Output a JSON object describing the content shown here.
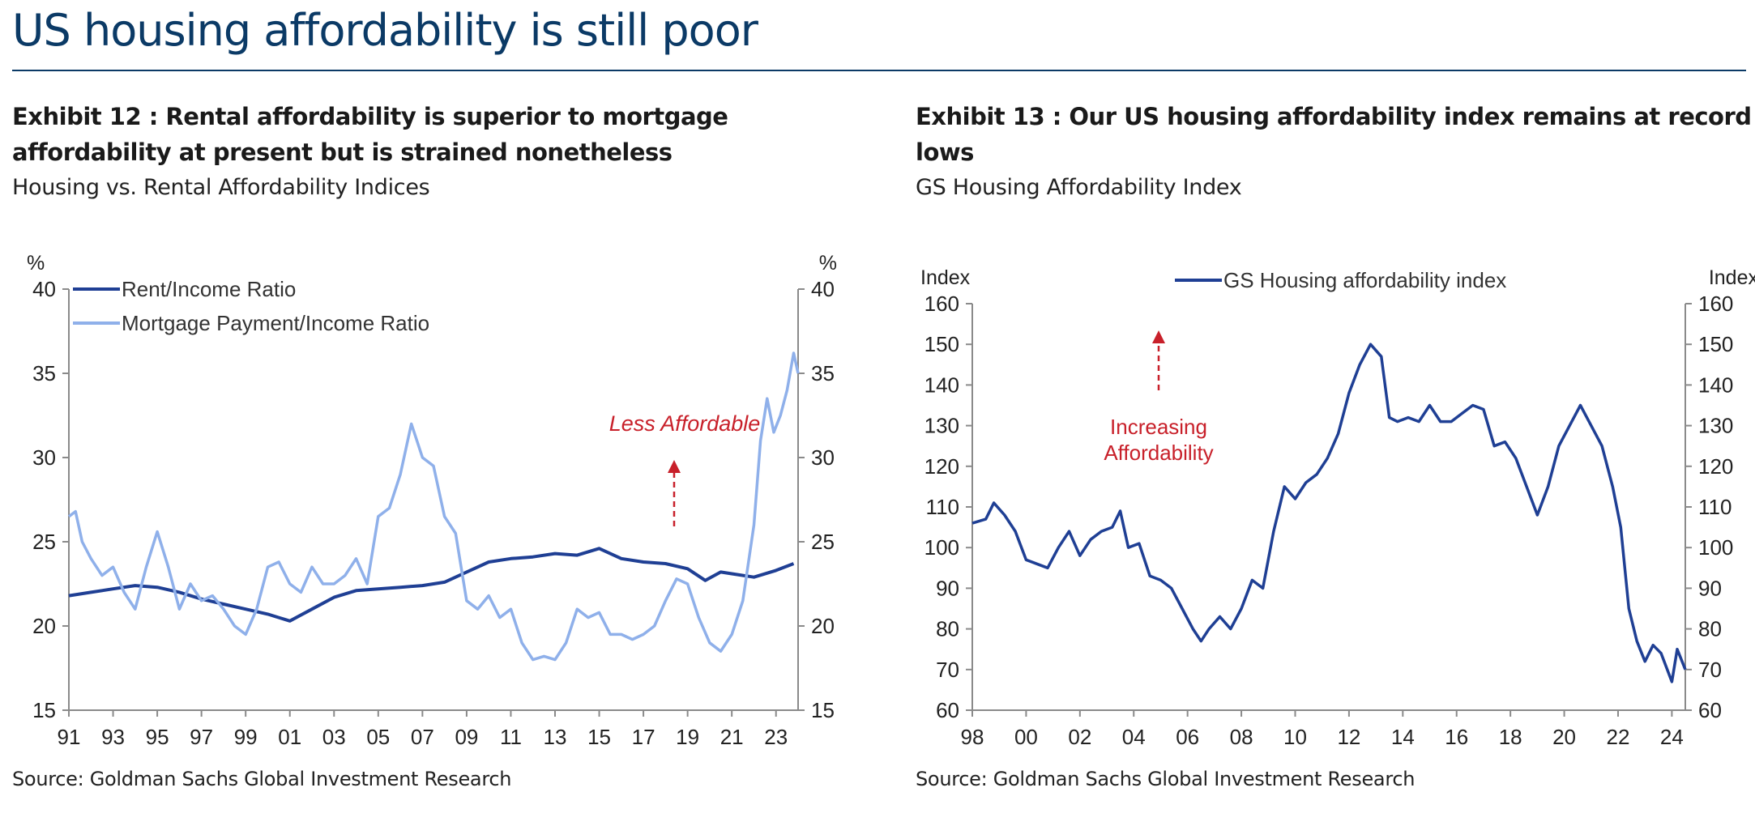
{
  "page": {
    "title": "US housing affordability is still poor"
  },
  "exhibit12": {
    "title": "Exhibit 12 : Rental affordability is superior to mortgage affordability at present but is strained nonetheless",
    "subtitle": "Housing vs. Rental Affordability Indices",
    "source": "Source: Goldman Sachs Global Investment Research",
    "annotation": "Less Affordable"
  },
  "exhibit13": {
    "title": "Exhibit 13 : Our US housing affordability index remains at record lows",
    "subtitle": "GS Housing Affordability Index",
    "source": "Source: Goldman Sachs Global Investment Research",
    "annotation": [
      "Increasing",
      "Affordability"
    ]
  },
  "colors": {
    "dark_blue": "#1f3f94",
    "light_blue": "#8fb0ea",
    "annotation_red": "#c8202a",
    "title_navy": "#0b3a66"
  },
  "chart_data": [
    {
      "type": "line",
      "ylabel_left": "%",
      "ylabel_right": "%",
      "xlim": [
        1991,
        2024
      ],
      "ylim": [
        15,
        40
      ],
      "yticks": [
        15,
        20,
        25,
        30,
        35,
        40
      ],
      "xticks": [
        1991,
        1993,
        1995,
        1997,
        1999,
        2001,
        2003,
        2005,
        2007,
        2009,
        2011,
        2013,
        2015,
        2017,
        2019,
        2021,
        2023
      ],
      "xtick_labels": [
        "91",
        "93",
        "95",
        "97",
        "99",
        "01",
        "03",
        "05",
        "07",
        "09",
        "11",
        "13",
        "15",
        "17",
        "19",
        "21",
        "23"
      ],
      "legend": "top-left",
      "grid": false,
      "series": [
        {
          "name": "Rent/Income Ratio",
          "color": "#1f3f94",
          "points": [
            [
              1991,
              21.8
            ],
            [
              1992,
              22.0
            ],
            [
              1993,
              22.2
            ],
            [
              1994,
              22.4
            ],
            [
              1995,
              22.3
            ],
            [
              1996,
              22.0
            ],
            [
              1997,
              21.6
            ],
            [
              1998,
              21.3
            ],
            [
              1999,
              21.0
            ],
            [
              2000,
              20.7
            ],
            [
              2000.5,
              20.5
            ],
            [
              2001,
              20.3
            ],
            [
              2002,
              21.0
            ],
            [
              2003,
              21.7
            ],
            [
              2004,
              22.1
            ],
            [
              2005,
              22.2
            ],
            [
              2006,
              22.3
            ],
            [
              2007,
              22.4
            ],
            [
              2008,
              22.6
            ],
            [
              2009,
              23.2
            ],
            [
              2010,
              23.8
            ],
            [
              2011,
              24.0
            ],
            [
              2012,
              24.1
            ],
            [
              2013,
              24.3
            ],
            [
              2014,
              24.2
            ],
            [
              2015,
              24.6
            ],
            [
              2016,
              24.0
            ],
            [
              2017,
              23.8
            ],
            [
              2018,
              23.7
            ],
            [
              2019,
              23.4
            ],
            [
              2019.8,
              22.7
            ],
            [
              2020.5,
              23.2
            ],
            [
              2021,
              23.1
            ],
            [
              2022,
              22.9
            ],
            [
              2023,
              23.3
            ],
            [
              2023.8,
              23.7
            ]
          ]
        },
        {
          "name": "Mortgage Payment/Income Ratio",
          "color": "#8fb0ea",
          "points": [
            [
              1991,
              26.5
            ],
            [
              1991.3,
              26.8
            ],
            [
              1991.6,
              25.0
            ],
            [
              1992,
              24.0
            ],
            [
              1992.5,
              23.0
            ],
            [
              1993,
              23.5
            ],
            [
              1993.5,
              22.0
            ],
            [
              1994,
              21.0
            ],
            [
              1994.5,
              23.5
            ],
            [
              1995,
              25.6
            ],
            [
              1995.5,
              23.5
            ],
            [
              1996,
              21.0
            ],
            [
              1996.5,
              22.5
            ],
            [
              1997,
              21.5
            ],
            [
              1997.5,
              21.8
            ],
            [
              1998,
              21.0
            ],
            [
              1998.5,
              20.0
            ],
            [
              1999,
              19.5
            ],
            [
              1999.5,
              21.0
            ],
            [
              2000,
              23.5
            ],
            [
              2000.5,
              23.8
            ],
            [
              2001,
              22.5
            ],
            [
              2001.5,
              22.0
            ],
            [
              2002,
              23.5
            ],
            [
              2002.5,
              22.5
            ],
            [
              2003,
              22.5
            ],
            [
              2003.5,
              23.0
            ],
            [
              2004,
              24.0
            ],
            [
              2004.5,
              22.5
            ],
            [
              2005,
              26.5
            ],
            [
              2005.5,
              27.0
            ],
            [
              2006,
              29.0
            ],
            [
              2006.5,
              32.0
            ],
            [
              2007,
              30.0
            ],
            [
              2007.5,
              29.5
            ],
            [
              2008,
              26.5
            ],
            [
              2008.5,
              25.5
            ],
            [
              2009,
              21.5
            ],
            [
              2009.5,
              21.0
            ],
            [
              2010,
              21.8
            ],
            [
              2010.5,
              20.5
            ],
            [
              2011,
              21.0
            ],
            [
              2011.5,
              19.0
            ],
            [
              2012,
              18.0
            ],
            [
              2012.5,
              18.2
            ],
            [
              2013,
              18.0
            ],
            [
              2013.5,
              19.0
            ],
            [
              2014,
              21.0
            ],
            [
              2014.5,
              20.5
            ],
            [
              2015,
              20.8
            ],
            [
              2015.5,
              19.5
            ],
            [
              2016,
              19.5
            ],
            [
              2016.5,
              19.2
            ],
            [
              2017,
              19.5
            ],
            [
              2017.5,
              20.0
            ],
            [
              2018,
              21.5
            ],
            [
              2018.5,
              22.8
            ],
            [
              2019,
              22.5
            ],
            [
              2019.5,
              20.5
            ],
            [
              2020,
              19.0
            ],
            [
              2020.5,
              18.5
            ],
            [
              2021,
              19.5
            ],
            [
              2021.5,
              21.5
            ],
            [
              2022,
              26.0
            ],
            [
              2022.3,
              31.0
            ],
            [
              2022.6,
              33.5
            ],
            [
              2022.9,
              31.5
            ],
            [
              2023.2,
              32.5
            ],
            [
              2023.5,
              34.0
            ],
            [
              2023.8,
              36.2
            ],
            [
              2024,
              35.0
            ]
          ]
        }
      ]
    },
    {
      "type": "line",
      "ylabel_left": "Index",
      "ylabel_right": "Index",
      "xlim": [
        1998,
        2024.5
      ],
      "ylim": [
        60,
        160
      ],
      "yticks": [
        60,
        70,
        80,
        90,
        100,
        110,
        120,
        130,
        140,
        150,
        160
      ],
      "xticks": [
        1998,
        2000,
        2002,
        2004,
        2006,
        2008,
        2010,
        2012,
        2014,
        2016,
        2018,
        2020,
        2022,
        2024
      ],
      "xtick_labels": [
        "98",
        "00",
        "02",
        "04",
        "06",
        "08",
        "10",
        "12",
        "14",
        "16",
        "18",
        "20",
        "22",
        "24"
      ],
      "legend": "top-center",
      "grid": false,
      "series": [
        {
          "name": "GS Housing affordability index",
          "color": "#1f3f94",
          "points": [
            [
              1998,
              106
            ],
            [
              1998.5,
              107
            ],
            [
              1998.8,
              111
            ],
            [
              1999.2,
              108
            ],
            [
              1999.6,
              104
            ],
            [
              2000,
              97
            ],
            [
              2000.4,
              96
            ],
            [
              2000.8,
              95
            ],
            [
              2001.2,
              100
            ],
            [
              2001.6,
              104
            ],
            [
              2002,
              98
            ],
            [
              2002.4,
              102
            ],
            [
              2002.8,
              104
            ],
            [
              2003.2,
              105
            ],
            [
              2003.5,
              109
            ],
            [
              2003.8,
              100
            ],
            [
              2004.2,
              101
            ],
            [
              2004.6,
              93
            ],
            [
              2005,
              92
            ],
            [
              2005.4,
              90
            ],
            [
              2005.8,
              85
            ],
            [
              2006.2,
              80
            ],
            [
              2006.5,
              77
            ],
            [
              2006.8,
              80
            ],
            [
              2007.2,
              83
            ],
            [
              2007.6,
              80
            ],
            [
              2008,
              85
            ],
            [
              2008.4,
              92
            ],
            [
              2008.8,
              90
            ],
            [
              2009.2,
              104
            ],
            [
              2009.6,
              115
            ],
            [
              2010,
              112
            ],
            [
              2010.4,
              116
            ],
            [
              2010.8,
              118
            ],
            [
              2011.2,
              122
            ],
            [
              2011.6,
              128
            ],
            [
              2012,
              138
            ],
            [
              2012.4,
              145
            ],
            [
              2012.8,
              150
            ],
            [
              2013.2,
              147
            ],
            [
              2013.5,
              132
            ],
            [
              2013.8,
              131
            ],
            [
              2014.2,
              132
            ],
            [
              2014.6,
              131
            ],
            [
              2015,
              135
            ],
            [
              2015.4,
              131
            ],
            [
              2015.8,
              131
            ],
            [
              2016.2,
              133
            ],
            [
              2016.6,
              135
            ],
            [
              2017,
              134
            ],
            [
              2017.4,
              125
            ],
            [
              2017.8,
              126
            ],
            [
              2018.2,
              122
            ],
            [
              2018.6,
              115
            ],
            [
              2019,
              108
            ],
            [
              2019.4,
              115
            ],
            [
              2019.8,
              125
            ],
            [
              2020.2,
              130
            ],
            [
              2020.6,
              135
            ],
            [
              2021,
              130
            ],
            [
              2021.4,
              125
            ],
            [
              2021.8,
              115
            ],
            [
              2022.1,
              105
            ],
            [
              2022.4,
              85
            ],
            [
              2022.7,
              77
            ],
            [
              2023,
              72
            ],
            [
              2023.3,
              76
            ],
            [
              2023.6,
              74
            ],
            [
              2024,
              67
            ],
            [
              2024.2,
              75
            ],
            [
              2024.5,
              70
            ]
          ]
        }
      ]
    }
  ]
}
